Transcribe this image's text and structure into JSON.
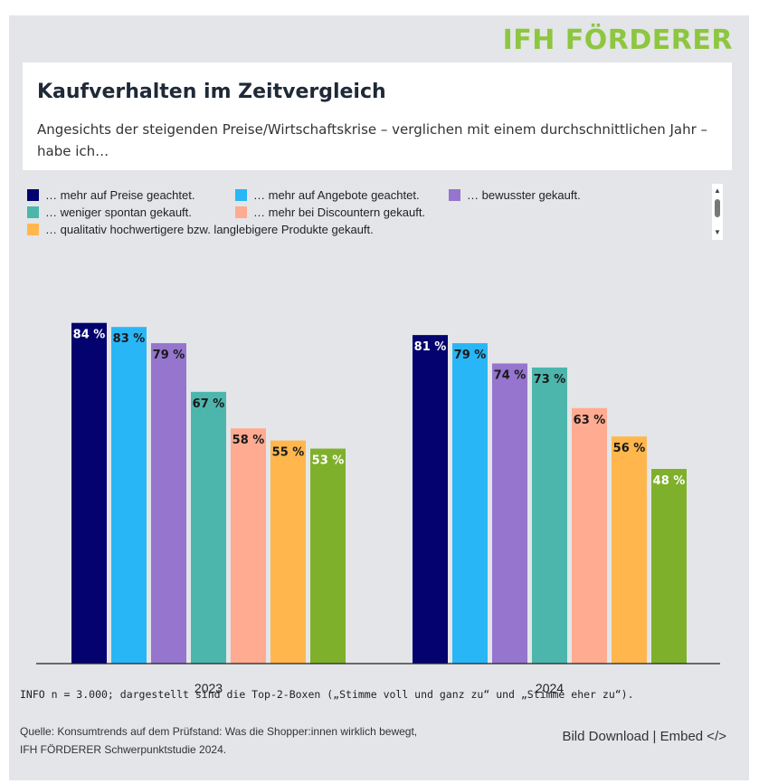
{
  "brand": {
    "logo_text": "IFH FÖRDERER",
    "logo_color": "#8dc63f"
  },
  "header": {
    "title": "Kaufverhalten im Zeitvergleich",
    "subtitle": "Angesichts der steigenden Preise/Wirtschaftskrise – verglichen mit einem durchschnittlichen Jahr – habe ich…"
  },
  "legend_controls": {
    "scroll_up": "▲",
    "scroll_down": "▼"
  },
  "chart_data": {
    "type": "bar",
    "categories": [
      "2023",
      "2024"
    ],
    "ylim": [
      0,
      100
    ],
    "value_suffix": " %",
    "series": [
      {
        "name": "… mehr auf Preise geachtet.",
        "color": "#03026e",
        "label_color": "#ffffff",
        "values": [
          84,
          81
        ]
      },
      {
        "name": "… mehr auf Angebote geachtet.",
        "color": "#29b6f6",
        "label_color": "#1a1a1a",
        "values": [
          83,
          79
        ]
      },
      {
        "name": "… bewusster gekauft.",
        "color": "#9575cd",
        "label_color": "#1a1a1a",
        "values": [
          79,
          74
        ]
      },
      {
        "name": "… weniger spontan gekauft.",
        "color": "#4db6ac",
        "label_color": "#1a1a1a",
        "values": [
          67,
          73
        ]
      },
      {
        "name": "… mehr bei Discountern gekauft.",
        "color": "#ffab91",
        "label_color": "#1a1a1a",
        "values": [
          58,
          63
        ]
      },
      {
        "name": "… qualitativ hochwertigere bzw. langlebigere Produkte gekauft.",
        "color": "#ffb74d",
        "label_color": "#1a1a1a",
        "values": [
          55,
          56
        ]
      },
      {
        "name": "",
        "color": "#7fb02c",
        "label_color": "#ffffff",
        "values": [
          53,
          48
        ]
      }
    ]
  },
  "footer": {
    "info": "INFO n = 3.000; dargestellt sind die Top-2-Boxen („Stimme voll und ganz zu“ und „Stimme eher zu“).",
    "source_line1": "Quelle: Konsumtrends auf dem Prüfstand: Was die Shopper:innen wirklich bewegt,",
    "source_line2": "IFH FÖRDERER Schwerpunktstudie 2024.",
    "download_label": "Bild Download",
    "separator": "|",
    "embed_label": "Embed </>"
  }
}
